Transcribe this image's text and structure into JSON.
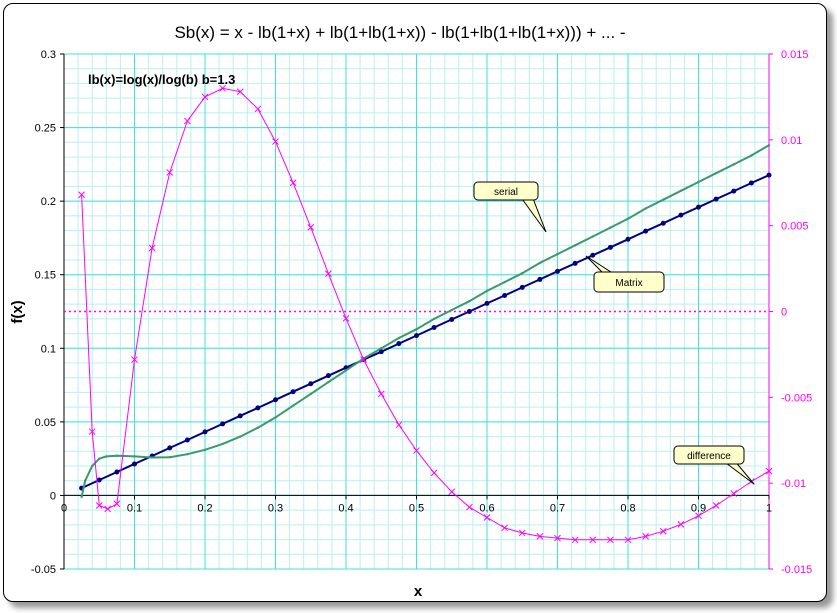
{
  "chart_data": {
    "type": "line",
    "title": "Sb(x) = x - lb(1+x) + lb(1+lb(1+x)) - lb(1+lb(1+lb(1+x))) + ... -",
    "annotation": "lb(x)=log(x)/log(b)   b=1.3",
    "xlabel": "x",
    "ylabel": "f(x)",
    "xlim": [
      0,
      1
    ],
    "ylim": [
      -0.05,
      0.3
    ],
    "y2lim": [
      -0.015,
      0.015
    ],
    "grid": true,
    "x_ticks": [
      "0",
      "0.1",
      "0.2",
      "0.3",
      "0.4",
      "0.5",
      "0.6",
      "0.7",
      "0.8",
      "0.9",
      "1"
    ],
    "y_ticks": [
      "-0.05",
      "0",
      "0.05",
      "0.1",
      "0.15",
      "0.2",
      "0.25",
      "0.3"
    ],
    "y2_ticks": [
      "-0.015",
      "-0.01",
      "-0.005",
      "0",
      "0.005",
      "0.01",
      "0.015"
    ],
    "colors": {
      "serial": "#3a9a6a",
      "matrix": "#000080",
      "difference": "#ff00ff",
      "grid_major": "#40e0e0",
      "grid_minor": "#b8f0f0"
    },
    "series": [
      {
        "name": "Matrix",
        "axis": "left",
        "x": [
          0.025,
          0.05,
          0.075,
          0.1,
          0.125,
          0.15,
          0.175,
          0.2,
          0.225,
          0.25,
          0.275,
          0.3,
          0.325,
          0.35,
          0.375,
          0.4,
          0.425,
          0.45,
          0.475,
          0.5,
          0.525,
          0.55,
          0.575,
          0.6,
          0.625,
          0.65,
          0.675,
          0.7,
          0.725,
          0.75,
          0.775,
          0.8,
          0.825,
          0.85,
          0.875,
          0.9,
          0.925,
          0.95,
          0.975,
          1.0
        ],
        "y": [
          0.005,
          0.0105,
          0.0159,
          0.0214,
          0.0268,
          0.0323,
          0.0377,
          0.0432,
          0.0486,
          0.0541,
          0.0595,
          0.065,
          0.0705,
          0.0759,
          0.0814,
          0.0868,
          0.0923,
          0.0977,
          0.1032,
          0.1086,
          0.1141,
          0.1196,
          0.125,
          0.1305,
          0.1359,
          0.1414,
          0.1468,
          0.1523,
          0.1577,
          0.1632,
          0.1686,
          0.1741,
          0.1796,
          0.185,
          0.1905,
          0.1959,
          0.2014,
          0.2068,
          0.2123,
          0.2177
        ]
      },
      {
        "name": "serial",
        "axis": "left",
        "x": [
          0.025,
          0.03,
          0.04,
          0.05,
          0.06,
          0.075,
          0.1,
          0.125,
          0.15,
          0.175,
          0.2,
          0.225,
          0.25,
          0.275,
          0.3,
          0.325,
          0.35,
          0.375,
          0.4,
          0.425,
          0.45,
          0.475,
          0.5,
          0.525,
          0.55,
          0.575,
          0.6,
          0.625,
          0.65,
          0.675,
          0.7,
          0.725,
          0.75,
          0.775,
          0.8,
          0.825,
          0.85,
          0.875,
          0.9,
          0.925,
          0.95,
          0.975,
          1.0
        ],
        "y": [
          -0.001,
          0.01,
          0.02,
          0.025,
          0.0265,
          0.027,
          0.0265,
          0.0258,
          0.026,
          0.028,
          0.031,
          0.035,
          0.04,
          0.046,
          0.053,
          0.061,
          0.069,
          0.077,
          0.085,
          0.093,
          0.1,
          0.107,
          0.113,
          0.12,
          0.126,
          0.132,
          0.139,
          0.145,
          0.151,
          0.158,
          0.164,
          0.17,
          0.176,
          0.182,
          0.188,
          0.195,
          0.201,
          0.207,
          0.213,
          0.219,
          0.225,
          0.231,
          0.238
        ]
      },
      {
        "name": "difference",
        "axis": "right",
        "x": [
          0.025,
          0.04,
          0.05,
          0.062,
          0.075,
          0.1,
          0.125,
          0.15,
          0.175,
          0.2,
          0.225,
          0.25,
          0.275,
          0.3,
          0.325,
          0.35,
          0.375,
          0.4,
          0.425,
          0.45,
          0.475,
          0.5,
          0.525,
          0.55,
          0.575,
          0.6,
          0.625,
          0.65,
          0.675,
          0.7,
          0.725,
          0.75,
          0.775,
          0.8,
          0.825,
          0.85,
          0.875,
          0.9,
          0.925,
          0.95,
          0.975,
          1.0
        ],
        "y": [
          0.0068,
          -0.007,
          -0.0113,
          -0.0115,
          -0.0112,
          -0.0028,
          0.0037,
          0.0081,
          0.0111,
          0.0125,
          0.013,
          0.0128,
          0.0118,
          0.0099,
          0.0075,
          0.0049,
          0.0022,
          -0.0004,
          -0.0028,
          -0.0048,
          -0.0066,
          -0.0081,
          -0.0094,
          -0.0105,
          -0.0114,
          -0.012,
          -0.0126,
          -0.0129,
          -0.0131,
          -0.0132,
          -0.0133,
          -0.0133,
          -0.0133,
          -0.0133,
          -0.0131,
          -0.0128,
          -0.0124,
          -0.0119,
          -0.0113,
          -0.0106,
          -0.0099,
          -0.0093
        ]
      }
    ],
    "callouts": [
      "serial",
      "Matrix",
      "difference"
    ]
  }
}
